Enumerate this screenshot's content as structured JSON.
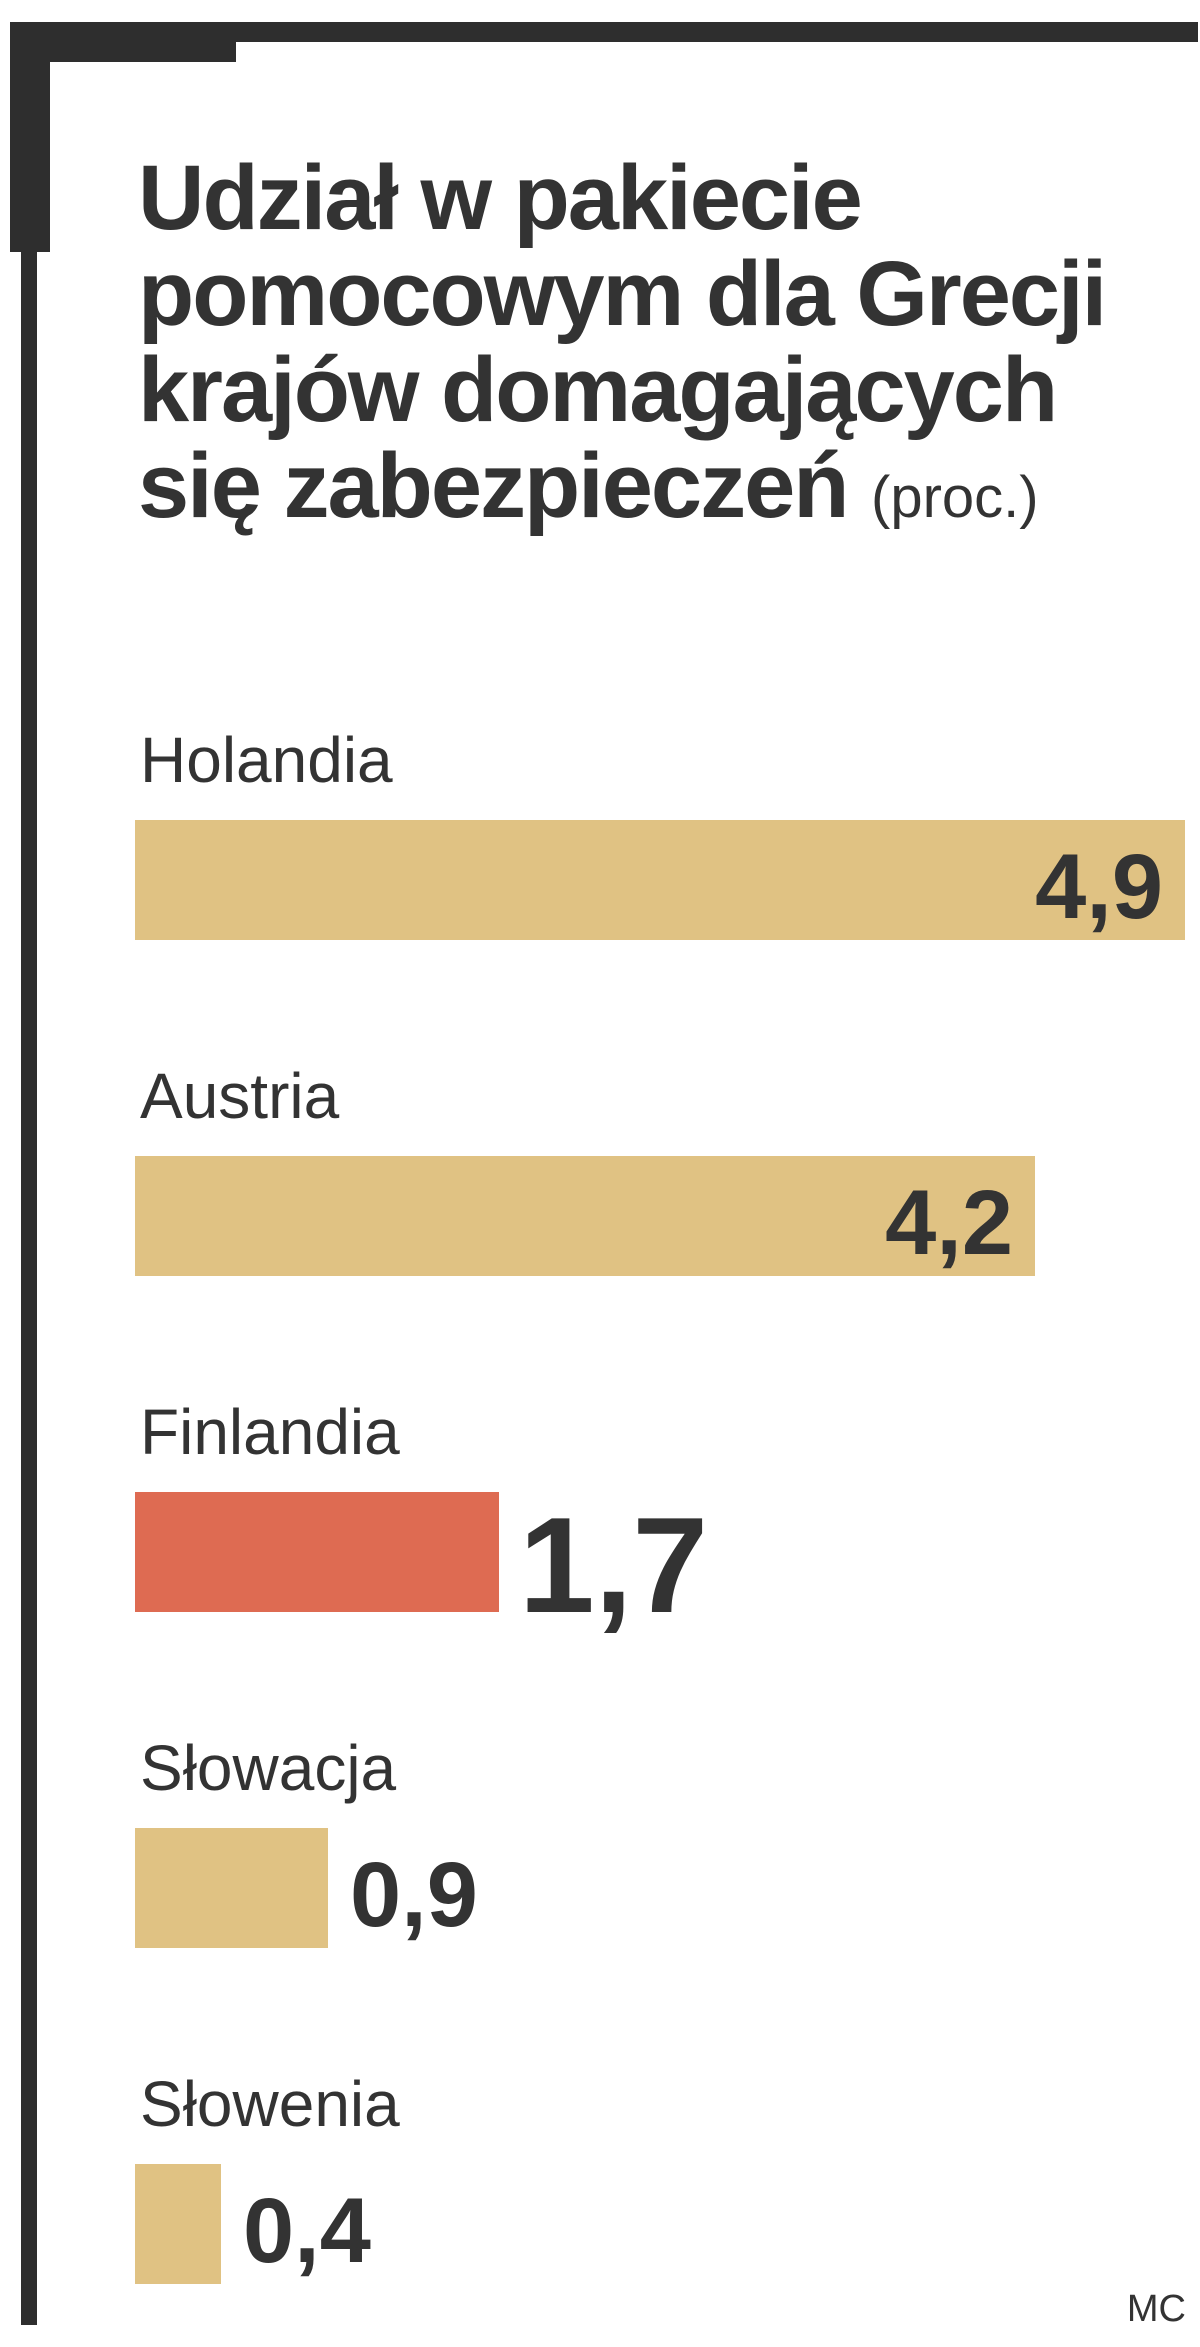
{
  "title_lines": [
    "Udział w pakiecie",
    "pomocowym dla Grecji",
    "krajów domagających",
    "się zabezpieczeń"
  ],
  "unit": "(proc.)",
  "source": "MC",
  "colors": {
    "default_bar": "#e0c283",
    "highlight_bar": "#de6b52",
    "frame": "#2e2e2e"
  },
  "chart_data": {
    "type": "bar",
    "orientation": "horizontal",
    "categories": [
      "Holandia",
      "Austria",
      "Finlandia",
      "Słowacja",
      "Słowenia"
    ],
    "values": [
      4.9,
      4.2,
      1.7,
      0.9,
      0.4
    ],
    "value_labels": [
      "4,9",
      "4,2",
      "1,7",
      "0,9",
      "0,4"
    ],
    "highlight": "Finlandia",
    "unit": "(proc.)",
    "xlim": [
      0,
      4.9
    ]
  }
}
